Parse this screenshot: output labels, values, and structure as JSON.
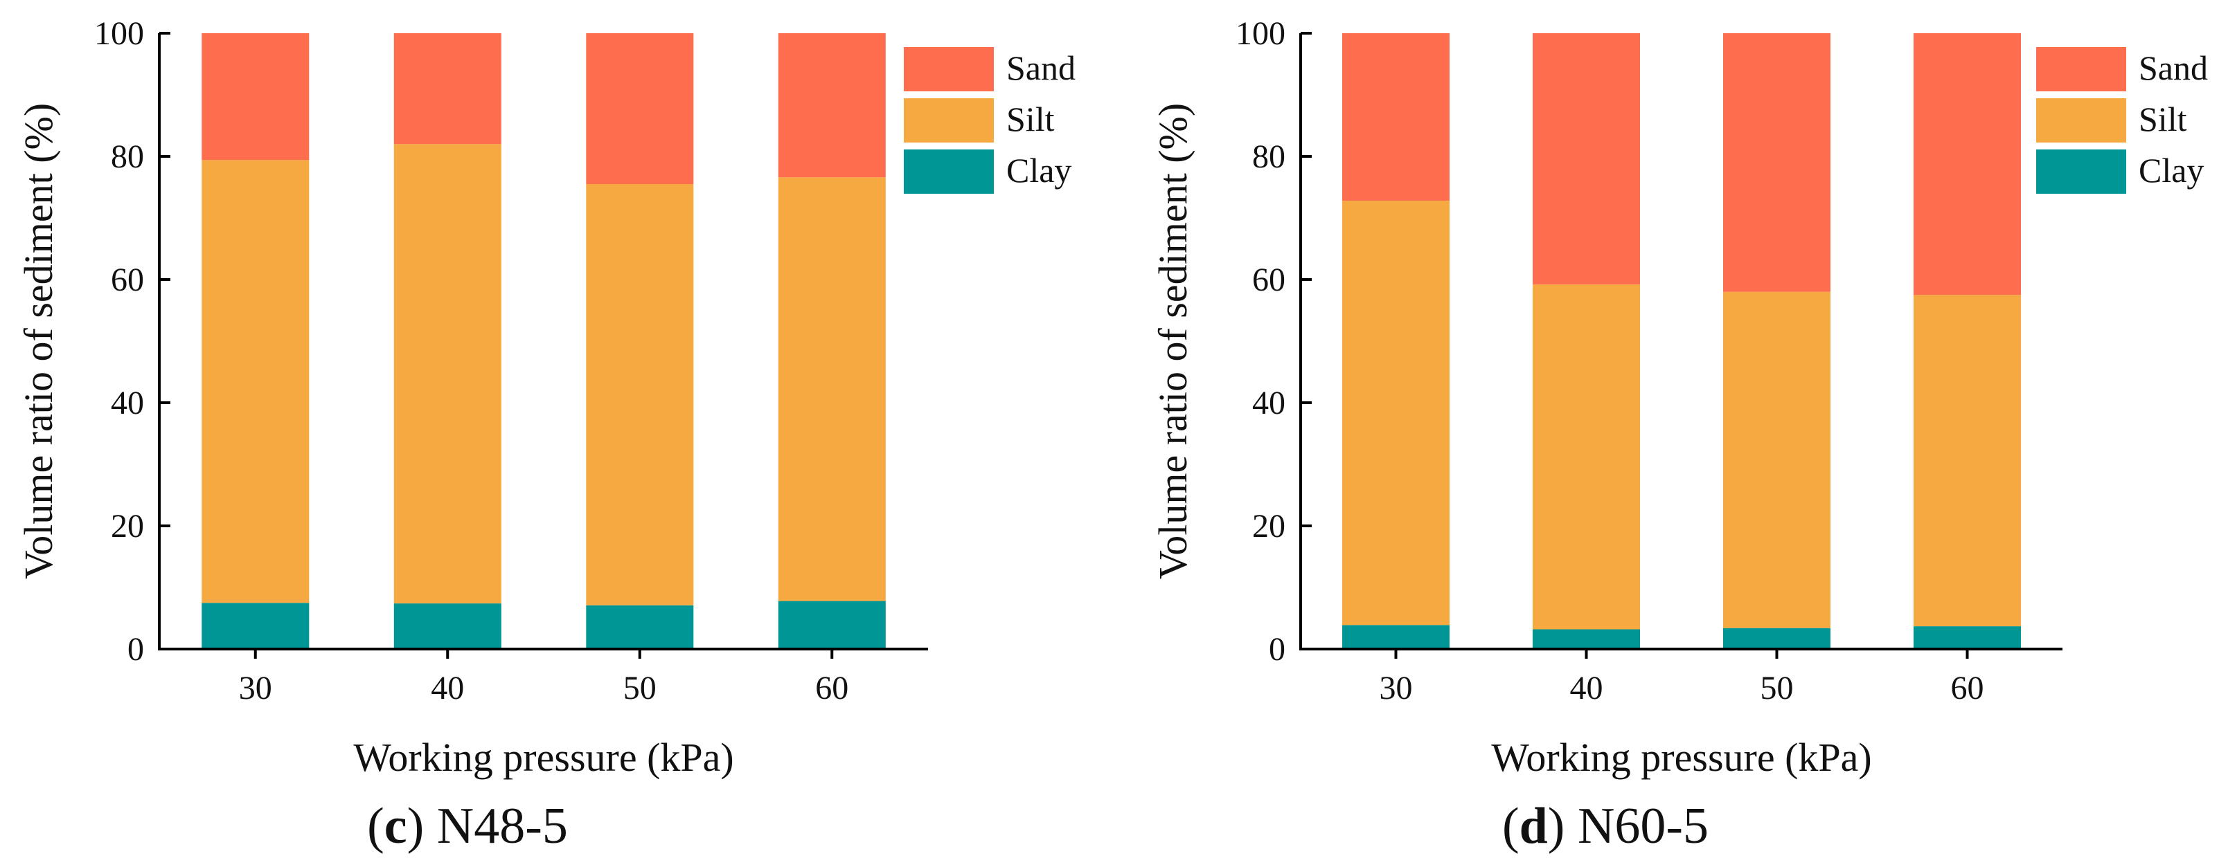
{
  "colors": {
    "Sand": "#FF6D4F",
    "Silt": "#F6A940",
    "Clay": "#009696",
    "axis": "#000000"
  },
  "chart_data": [
    {
      "type": "bar",
      "stacked": true,
      "caption_letter": "c",
      "caption_text": "N48-5",
      "title": "",
      "xlabel": "Working pressure (kPa)",
      "ylabel": "Volume ratio of sediment (%)",
      "ylim": [
        0,
        100
      ],
      "yticks": [
        "0",
        "20",
        "40",
        "60",
        "80",
        "100"
      ],
      "categories": [
        "30",
        "40",
        "50",
        "60"
      ],
      "legend_position": "top-right",
      "series": [
        {
          "name": "Clay",
          "values": [
            7.5,
            7.4,
            7.1,
            7.8
          ]
        },
        {
          "name": "Silt",
          "values": [
            71.9,
            74.6,
            68.4,
            68.8
          ]
        },
        {
          "name": "Sand",
          "values": [
            20.6,
            18.0,
            24.5,
            23.4
          ]
        }
      ]
    },
    {
      "type": "bar",
      "stacked": true,
      "caption_letter": "d",
      "caption_text": "N60-5",
      "title": "",
      "xlabel": "Working pressure (kPa)",
      "ylabel": "Volume ratio of sediment (%)",
      "ylim": [
        0,
        100
      ],
      "yticks": [
        "0",
        "20",
        "40",
        "60",
        "80",
        "100"
      ],
      "categories": [
        "30",
        "40",
        "50",
        "60"
      ],
      "legend_position": "top-right",
      "series": [
        {
          "name": "Clay",
          "values": [
            3.9,
            3.2,
            3.4,
            3.7
          ]
        },
        {
          "name": "Silt",
          "values": [
            68.9,
            56.0,
            54.6,
            53.8
          ]
        },
        {
          "name": "Sand",
          "values": [
            27.2,
            40.8,
            42.0,
            42.5
          ]
        }
      ]
    }
  ]
}
